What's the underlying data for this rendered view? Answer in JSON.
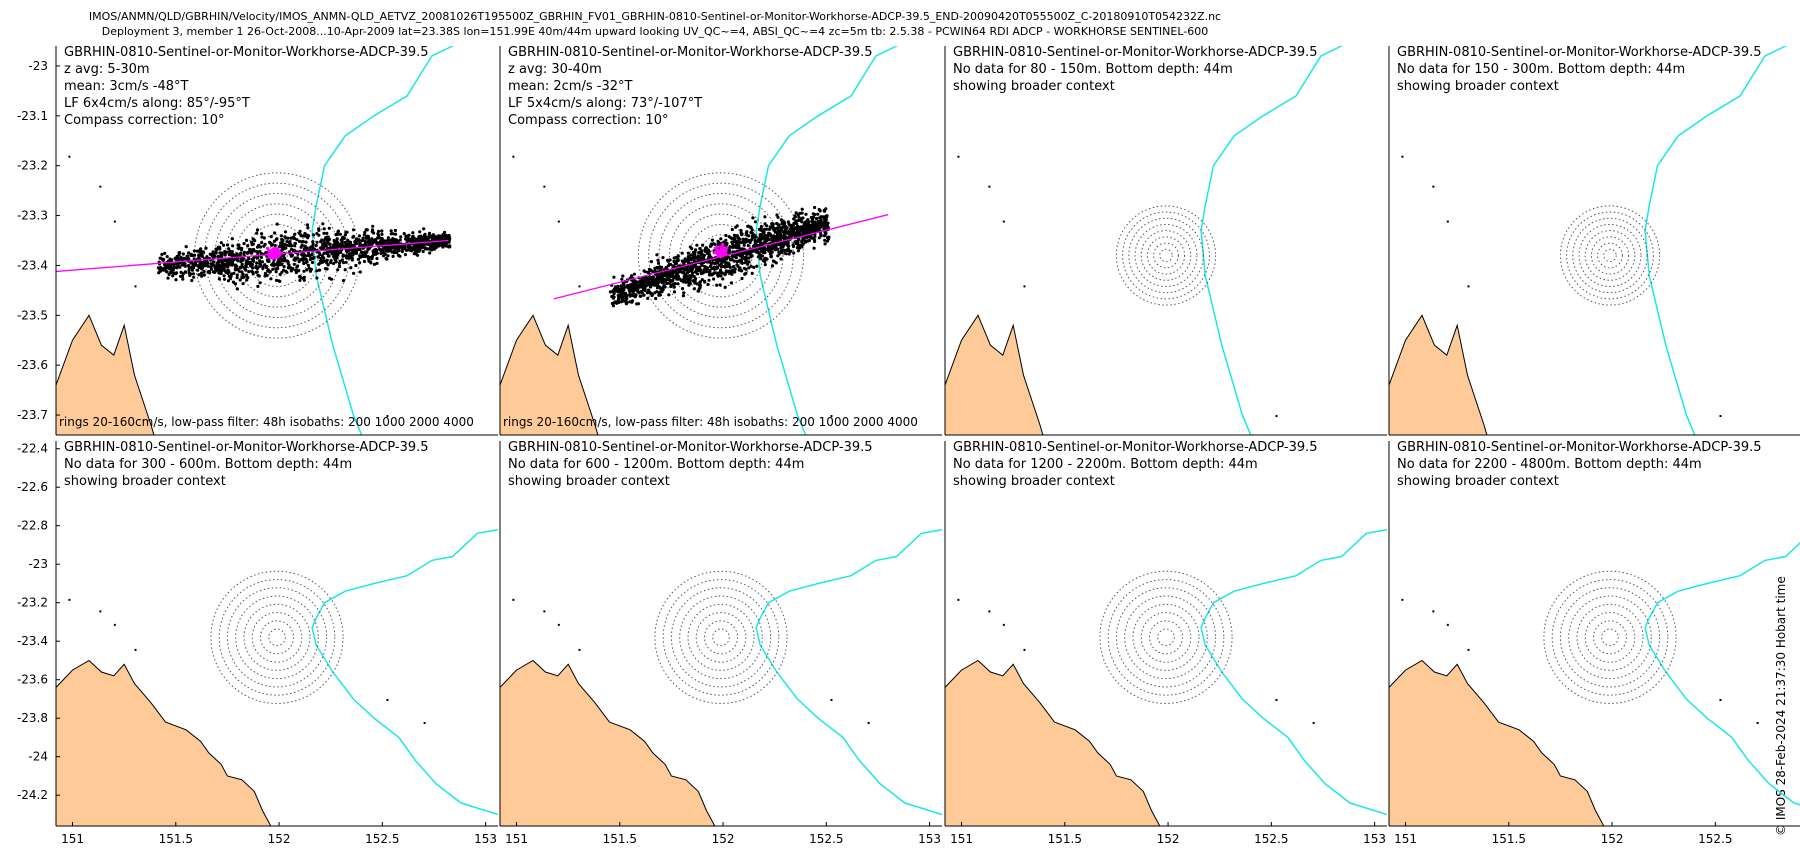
{
  "header": {
    "line1": "IMOS/ANMN/QLD/GBRHIN/Velocity/IMOS_ANMN-QLD_AETVZ_20081026T195500Z_GBRHIN_FV01_GBRHIN-0810-Sentinel-or-Monitor-Workhorse-ADCP-39.5_END-20090420T055500Z_C-20180910T054232Z.nc",
    "line2": "Deployment 3, member 1 26-Oct-2008...10-Apr-2009 lat=23.38S lon=151.99E 40m/44m upward looking UV_QC~=4, ABSI_QC~=4 zc=5m tb: 2.5.38 - PCWIN64 RDI ADCP - WORKHORSE SENTINEL-600"
  },
  "side_note": "© IMOS 28-Feb-2024 21:37:30 Hobart time",
  "colors": {
    "land": "#fdca98",
    "isobath": "#1de6e6",
    "scatter": "#000000",
    "mean": "#ff00ff",
    "rings": "#555555"
  },
  "chart_data": [
    {
      "type": "scatter",
      "panel": 1,
      "title_lines": [
        "GBRHIN-0810-Sentinel-or-Monitor-Workhorse-ADCP-39.5",
        "z avg: 5-30m",
        "mean: 3cm/s -48°T",
        "LF 6x4cm/s along: 85°/-95°T",
        "Compass correction: 10°"
      ],
      "footer": "rings 20-160cm/s, low-pass filter: 48h isobaths: 200 1000  2000 4000",
      "xlim": [
        150.92,
        153.06
      ],
      "ylim": [
        -23.74,
        -22.96
      ],
      "yticks": [
        -23,
        -23.1,
        -23.2,
        -23.3,
        -23.4,
        -23.5,
        -23.6,
        -23.7
      ],
      "ytick_labels": [
        "-23",
        "-23.1",
        "-23.2",
        "-23.3",
        "-23.4",
        "-23.5",
        "-23.6",
        "-23.7"
      ],
      "xticks": [],
      "xtick_labels": [],
      "rings_center": [
        151.99,
        -23.38
      ],
      "rings_radius_deg": [
        0.05,
        0.1,
        0.15,
        0.2,
        0.25,
        0.3,
        0.35,
        0.4
      ],
      "scatter_axis_deg": 85,
      "scatter_extent_deg": [
        -0.62,
        0.8
      ],
      "principal_axis": {
        "x": [
          150.92,
          152.82
        ],
        "y": [
          -23.412,
          -23.35
        ]
      },
      "mean_point": [
        151.98,
        -23.376
      ]
    },
    {
      "type": "scatter",
      "panel": 2,
      "title_lines": [
        "GBRHIN-0810-Sentinel-or-Monitor-Workhorse-ADCP-39.5",
        "z avg: 30-40m",
        "mean: 2cm/s -32°T",
        "LF 5x4cm/s along: 73°/-107°T",
        "Compass correction: 10°"
      ],
      "footer": "rings 20-160cm/s, low-pass filter: 48h isobaths: 200 1000  2000 4000",
      "xlim": [
        150.92,
        153.06
      ],
      "ylim": [
        -23.74,
        -22.96
      ],
      "yticks": [],
      "ytick_labels": [],
      "xticks": [],
      "xtick_labels": [],
      "rings_center": [
        151.99,
        -23.38
      ],
      "rings_radius_deg": [
        0.05,
        0.1,
        0.15,
        0.2,
        0.25,
        0.3,
        0.35,
        0.4
      ],
      "scatter_axis_deg": 73,
      "scatter_extent_deg": [
        -0.6,
        0.5
      ],
      "principal_axis": {
        "x": [
          151.18,
          152.8
        ],
        "y": [
          -23.467,
          -23.298
        ]
      },
      "mean_point": [
        151.99,
        -23.372
      ]
    },
    {
      "type": "map",
      "panel": 3,
      "title_lines": [
        "GBRHIN-0810-Sentinel-or-Monitor-Workhorse-ADCP-39.5",
        "No data for 80 - 150m. Bottom depth: 44m",
        "showing broader context"
      ],
      "xlim": [
        150.92,
        153.06
      ],
      "ylim": [
        -23.74,
        -22.96
      ],
      "yticks": [],
      "ytick_labels": [],
      "xticks": [],
      "xtick_labels": [],
      "rings_center": [
        151.99,
        -23.38
      ],
      "rings_radius_deg": [
        0.03,
        0.06,
        0.09,
        0.12,
        0.15,
        0.18,
        0.21,
        0.24
      ]
    },
    {
      "type": "map",
      "panel": 4,
      "title_lines": [
        "GBRHIN-0810-Sentinel-or-Monitor-Workhorse-ADCP-39.5",
        "No data for 150 - 300m. Bottom depth: 44m",
        "showing broader context"
      ],
      "xlim": [
        150.92,
        153.06
      ],
      "ylim": [
        -23.74,
        -22.96
      ],
      "yticks": [],
      "ytick_labels": [],
      "xticks": [],
      "xtick_labels": [],
      "rings_center": [
        151.99,
        -23.38
      ],
      "rings_radius_deg": [
        0.03,
        0.06,
        0.09,
        0.12,
        0.15,
        0.18,
        0.21,
        0.24
      ]
    },
    {
      "type": "map",
      "panel": 5,
      "title_lines": [
        "GBRHIN-0810-Sentinel-or-Monitor-Workhorse-ADCP-39.5",
        "No data for 300 - 600m. Bottom depth: 44m",
        "showing broader context"
      ],
      "xlim": [
        150.92,
        153.06
      ],
      "ylim": [
        -24.36,
        -22.36
      ],
      "yticks": [
        -22.4,
        -22.6,
        -22.8,
        -23,
        -23.2,
        -23.4,
        -23.6,
        -23.8,
        -24,
        -24.2
      ],
      "ytick_labels": [
        "-22.4",
        "-22.6",
        "-22.8",
        "-23",
        "-23.2",
        "-23.4",
        "-23.6",
        "-23.8",
        "-24",
        "-24.2"
      ],
      "xticks": [
        151,
        151.5,
        152,
        152.5,
        153
      ],
      "xtick_labels": [
        "151",
        "151.5",
        "152",
        "152.5",
        "153"
      ],
      "rings_center": [
        151.99,
        -23.38
      ],
      "rings_radius_deg": [
        0.04,
        0.08,
        0.12,
        0.16,
        0.2,
        0.24,
        0.28,
        0.32
      ]
    },
    {
      "type": "map",
      "panel": 6,
      "title_lines": [
        "GBRHIN-0810-Sentinel-or-Monitor-Workhorse-ADCP-39.5",
        "No data for 600 - 1200m. Bottom depth: 44m",
        "showing broader context"
      ],
      "xlim": [
        150.92,
        153.06
      ],
      "ylim": [
        -24.36,
        -22.36
      ],
      "yticks": [],
      "ytick_labels": [],
      "xticks": [
        151,
        151.5,
        152,
        152.5,
        153
      ],
      "xtick_labels": [
        "151",
        "151.5",
        "152",
        "152.5",
        "153"
      ],
      "rings_center": [
        151.99,
        -23.38
      ],
      "rings_radius_deg": [
        0.04,
        0.08,
        0.12,
        0.16,
        0.2,
        0.24,
        0.28,
        0.32
      ]
    },
    {
      "type": "map",
      "panel": 7,
      "title_lines": [
        "GBRHIN-0810-Sentinel-or-Monitor-Workhorse-ADCP-39.5",
        "No data for 1200 - 2200m. Bottom depth: 44m",
        "showing broader context"
      ],
      "xlim": [
        150.92,
        153.06
      ],
      "ylim": [
        -24.36,
        -22.36
      ],
      "yticks": [],
      "ytick_labels": [],
      "xticks": [
        151,
        151.5,
        152,
        152.5,
        153
      ],
      "xtick_labels": [
        "151",
        "151.5",
        "152",
        "152.5",
        "153"
      ],
      "rings_center": [
        151.99,
        -23.38
      ],
      "rings_radius_deg": [
        0.04,
        0.08,
        0.12,
        0.16,
        0.2,
        0.24,
        0.28,
        0.32
      ]
    },
    {
      "type": "map",
      "panel": 8,
      "title_lines": [
        "GBRHIN-0810-Sentinel-or-Monitor-Workhorse-ADCP-39.5",
        "No data for 2200 - 4800m. Bottom depth: 44m",
        "showing broader context"
      ],
      "xlim": [
        150.92,
        153.06
      ],
      "ylim": [
        -24.36,
        -22.36
      ],
      "yticks": [],
      "ytick_labels": [],
      "xticks": [
        151,
        151.5,
        152,
        152.5,
        153
      ],
      "xtick_labels": [
        "151",
        "151.5",
        "152",
        "152.5",
        "153"
      ],
      "rings_center": [
        151.99,
        -23.38
      ],
      "rings_radius_deg": [
        0.04,
        0.08,
        0.12,
        0.16,
        0.2,
        0.24,
        0.28,
        0.32
      ]
    }
  ]
}
